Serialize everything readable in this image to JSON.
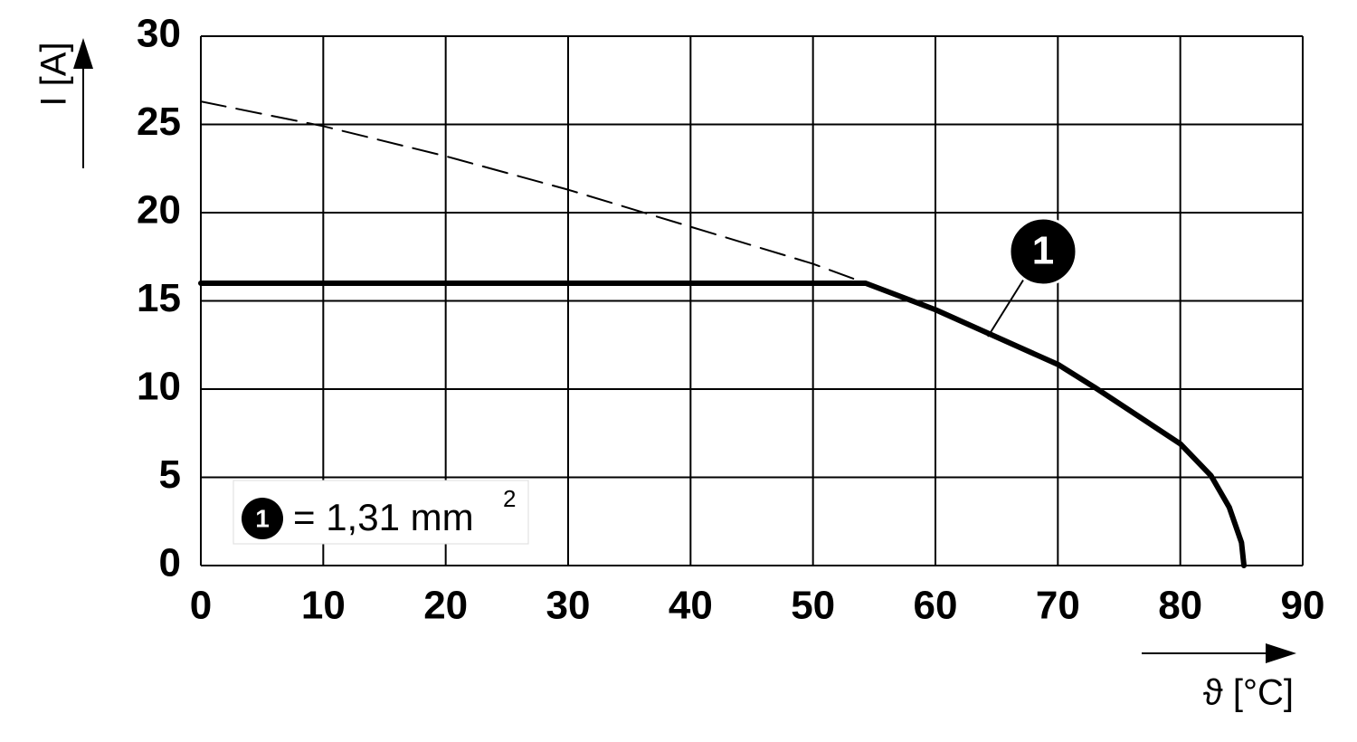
{
  "chart_data": {
    "type": "line",
    "y_label": "I [A]",
    "x_label": "ϑ [°C]",
    "xlim": [
      0,
      90
    ],
    "xticks": [
      0,
      10,
      20,
      30,
      40,
      50,
      60,
      70,
      80,
      90
    ],
    "ylim": [
      0,
      30
    ],
    "yticks": [
      0,
      5,
      10,
      15,
      20,
      25,
      30
    ],
    "grid": true,
    "series": [
      {
        "name": "1",
        "color": "#000000",
        "style": "solid",
        "x": [
          0,
          54.3,
          60,
          64.5,
          70,
          73,
          80,
          82.5,
          84,
          85,
          85.2
        ],
        "values": [
          16,
          16,
          14.5,
          13.1,
          11.4,
          10.1,
          6.9,
          5.1,
          3.3,
          1.3,
          0
        ]
      },
      {
        "color": "#000000",
        "style": "dashed",
        "x": [
          0,
          10,
          20,
          30,
          40,
          50,
          54.3
        ],
        "values": [
          26.3,
          24.9,
          23.2,
          21.3,
          19.2,
          17.1,
          16
        ]
      }
    ],
    "legend_text": "= 1,31 mm",
    "legend_superscript": "2"
  }
}
